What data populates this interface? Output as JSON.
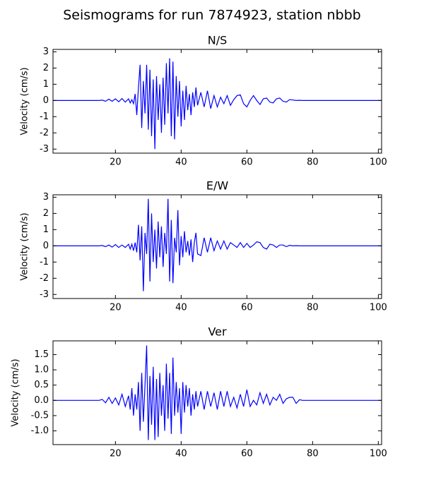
{
  "title": "Seismograms for run 7874923, station nbbb",
  "chart_data": [
    {
      "type": "line",
      "title": "N/S",
      "ylabel": "Velocity (cm/s)",
      "color": "#0000ff",
      "x": [
        1,
        5,
        10,
        14,
        15,
        16,
        17,
        18,
        19,
        20,
        21,
        22,
        23,
        24,
        24.5,
        25,
        25.5,
        26,
        26.5,
        27,
        27.5,
        28,
        28.5,
        29,
        29.5,
        30,
        30.5,
        31,
        31.5,
        32,
        32.5,
        33,
        33.5,
        34,
        34.5,
        35,
        35.5,
        36,
        36.5,
        37,
        37.5,
        38,
        38.5,
        39,
        39.5,
        40,
        40.5,
        41,
        41.5,
        42,
        42.5,
        43,
        43.5,
        44,
        44.5,
        45,
        46,
        47,
        48,
        49,
        50,
        51,
        52,
        53,
        54,
        55,
        56,
        57,
        58,
        59,
        60,
        61,
        62,
        63,
        64,
        65,
        66,
        67,
        68,
        69,
        70,
        71,
        72,
        73,
        74,
        75,
        76,
        77,
        78,
        80,
        90,
        101
      ],
      "values": [
        0,
        0,
        0,
        0,
        0,
        0.02,
        -0.05,
        0.08,
        -0.05,
        0.1,
        -0.08,
        0.12,
        -0.1,
        0.1,
        -0.15,
        0.05,
        -0.2,
        0.4,
        -0.9,
        0.8,
        2.2,
        -1.7,
        1.2,
        -0.8,
        2.2,
        -1.8,
        1.9,
        -2.2,
        1.3,
        -3.0,
        1.5,
        -1.2,
        1.0,
        -2.0,
        1.4,
        -1.5,
        2.3,
        -0.8,
        2.6,
        -2.2,
        2.4,
        -2.4,
        1.5,
        -1.0,
        1.2,
        -1.6,
        0.6,
        -1.2,
        0.9,
        -0.6,
        0.4,
        -0.9,
        0.5,
        -0.4,
        0.8,
        -0.3,
        0.5,
        -0.4,
        0.6,
        -0.5,
        0.3,
        -0.4,
        0.2,
        -0.2,
        0.3,
        -0.3,
        0.05,
        0.3,
        0.35,
        -0.2,
        -0.4,
        0.0,
        0.3,
        0.0,
        -0.25,
        0.1,
        0.15,
        -0.1,
        -0.15,
        0.1,
        0.15,
        -0.05,
        -0.1,
        0.05,
        0.03,
        0,
        0.01,
        0,
        0,
        0,
        0,
        0
      ],
      "xlim": [
        1,
        101
      ],
      "xticks": [
        20,
        40,
        60,
        80,
        100
      ],
      "ylim": [
        -3.25,
        3.15
      ],
      "yticks": [
        -3,
        -2,
        -1,
        0,
        1,
        2,
        3
      ]
    },
    {
      "type": "line",
      "title": "E/W",
      "ylabel": "Velocity (cm/s)",
      "color": "#0000ff",
      "x": [
        1,
        5,
        10,
        14,
        15,
        16,
        17,
        18,
        19,
        20,
        21,
        22,
        23,
        24,
        24.5,
        25,
        25.5,
        26,
        26.5,
        27,
        27.5,
        28,
        28.5,
        29,
        29.5,
        30,
        30.5,
        31,
        31.5,
        32,
        32.5,
        33,
        33.5,
        34,
        34.5,
        35,
        35.5,
        36,
        36.5,
        37,
        37.5,
        38,
        38.5,
        39,
        39.5,
        40,
        40.5,
        41,
        41.5,
        42,
        42.5,
        43,
        43.5,
        44,
        44.5,
        45,
        46,
        47,
        48,
        49,
        50,
        51,
        52,
        53,
        54,
        55,
        56,
        57,
        58,
        59,
        60,
        61,
        62,
        63,
        64,
        65,
        66,
        67,
        68,
        69,
        70,
        71,
        72,
        73,
        74,
        75,
        76,
        77,
        78,
        80,
        90,
        101
      ],
      "values": [
        0,
        0,
        0,
        0,
        0,
        0.02,
        -0.05,
        0.05,
        -0.08,
        0.08,
        -0.1,
        0.05,
        -0.1,
        0.1,
        -0.2,
        0.1,
        -0.3,
        0.2,
        -0.4,
        1.3,
        -0.9,
        1.2,
        -2.8,
        0.8,
        -0.5,
        2.9,
        -2.2,
        2.0,
        -1.0,
        1.0,
        -1.4,
        1.5,
        -0.7,
        1.2,
        -1.3,
        0.8,
        -0.5,
        2.9,
        -2.2,
        1.6,
        -2.3,
        0.5,
        -0.4,
        2.2,
        -1.2,
        0.6,
        -0.7,
        0.9,
        -0.4,
        0.3,
        -0.6,
        0.4,
        -1.0,
        0.2,
        0.8,
        -0.5,
        -0.6,
        0.5,
        -0.4,
        0.5,
        -0.3,
        0.3,
        -0.2,
        0.3,
        -0.2,
        0.2,
        0.05,
        -0.1,
        0.2,
        -0.1,
        0.15,
        -0.1,
        0.05,
        0.25,
        0.2,
        -0.1,
        -0.2,
        0.1,
        0.05,
        -0.1,
        0.05,
        0.05,
        -0.05,
        0.03,
        0,
        0.01,
        0,
        0,
        0,
        0,
        0,
        0
      ],
      "xlim": [
        1,
        101
      ],
      "xticks": [
        20,
        40,
        60,
        80,
        100
      ],
      "ylim": [
        -3.25,
        3.15
      ],
      "yticks": [
        -3,
        -2,
        -1,
        0,
        1,
        2,
        3
      ]
    },
    {
      "type": "line",
      "title": "Ver",
      "ylabel": "Velocity (cm/s)",
      "color": "#0000ff",
      "x": [
        1,
        5,
        10,
        14,
        15,
        16,
        17,
        18,
        19,
        20,
        21,
        22,
        23,
        24,
        24.5,
        25,
        25.5,
        26,
        26.5,
        27,
        27.5,
        28,
        28.5,
        29,
        29.5,
        30,
        30.5,
        31,
        31.5,
        32,
        32.5,
        33,
        33.5,
        34,
        34.5,
        35,
        35.5,
        36,
        36.5,
        37,
        37.5,
        38,
        38.5,
        39,
        39.5,
        40,
        40.5,
        41,
        41.5,
        42,
        42.5,
        43,
        43.5,
        44,
        44.5,
        45,
        46,
        47,
        48,
        49,
        50,
        51,
        52,
        53,
        54,
        55,
        56,
        57,
        58,
        59,
        60,
        61,
        62,
        63,
        64,
        65,
        66,
        67,
        68,
        69,
        70,
        71,
        72,
        73,
        74,
        75,
        76,
        77,
        78,
        80,
        90,
        101
      ],
      "values": [
        0,
        0,
        0,
        0,
        0,
        0.03,
        -0.08,
        0.1,
        -0.1,
        0.08,
        -0.15,
        0.2,
        -0.2,
        0.15,
        -0.3,
        0.4,
        -0.5,
        0.2,
        -0.3,
        0.6,
        -1.0,
        0.9,
        -0.7,
        0.5,
        1.8,
        -1.3,
        0.8,
        -0.8,
        1.1,
        -1.3,
        0.7,
        -1.2,
        0.9,
        -0.5,
        0.5,
        -1.0,
        1.2,
        -0.6,
        0.9,
        -1.1,
        1.4,
        -0.5,
        0.6,
        -0.4,
        0.4,
        -1.1,
        0.6,
        -0.4,
        0.5,
        -0.2,
        0.4,
        -0.5,
        0.2,
        -0.3,
        0.3,
        -0.2,
        0.3,
        -0.3,
        0.3,
        -0.2,
        0.25,
        -0.3,
        0.3,
        -0.2,
        0.3,
        -0.2,
        0.1,
        -0.25,
        0.2,
        -0.2,
        0.35,
        -0.2,
        0.0,
        -0.15,
        0.25,
        -0.1,
        0.2,
        -0.15,
        0.1,
        0.0,
        0.2,
        -0.1,
        0.05,
        0.1,
        0.1,
        -0.1,
        0.02,
        0,
        0,
        0,
        0,
        0
      ],
      "xlim": [
        1,
        101
      ],
      "xticks": [
        20,
        40,
        60,
        80,
        100
      ],
      "ylim": [
        -1.45,
        1.95
      ],
      "yticks": [
        {
          "value": -1,
          "label": "-1.0"
        },
        -0.5,
        {
          "value": 0,
          "label": "0.0"
        },
        0.5,
        {
          "value": 1,
          "label": "1.0"
        },
        1.5
      ]
    }
  ]
}
